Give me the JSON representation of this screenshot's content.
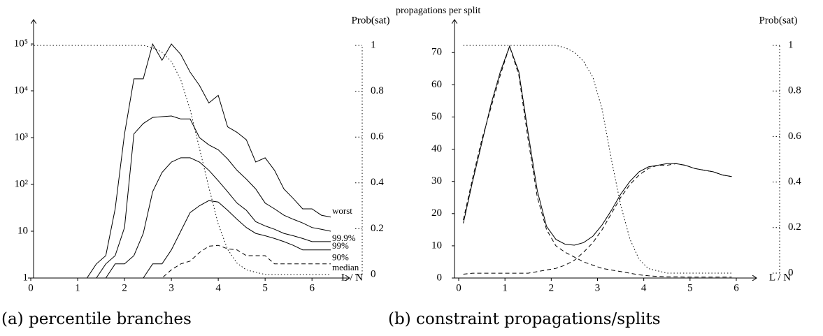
{
  "chart_data": [
    {
      "type": "line",
      "caption": "(a) percentile branches",
      "xlabel": "L / N",
      "y2label": "Prob(sat)",
      "ylog": true,
      "ylim": [
        1,
        100000
      ],
      "yticks": [
        1,
        10,
        {
          "value": 100,
          "label": "10²"
        },
        {
          "value": 1000,
          "label": "10³"
        },
        {
          "value": 10000,
          "label": "10⁴"
        },
        {
          "value": 100000,
          "label": "10⁵"
        }
      ],
      "xlim": [
        0,
        6.4
      ],
      "xticks": [
        0,
        1,
        2,
        3,
        4,
        5,
        6
      ],
      "y2lim": [
        0,
        1
      ],
      "y2ticks": [
        0,
        0.2,
        0.4,
        0.6,
        0.8,
        1
      ],
      "x": [
        0,
        0.2,
        0.4,
        0.6,
        0.8,
        1,
        1.2,
        1.4,
        1.6,
        1.8,
        2,
        2.2,
        2.4,
        2.6,
        2.8,
        3,
        3.2,
        3.4,
        3.6,
        3.8,
        4,
        4.2,
        4.4,
        4.6,
        4.8,
        5,
        5.2,
        5.4,
        5.6,
        5.8,
        6,
        6.2,
        6.4
      ],
      "series": [
        {
          "name": "worst",
          "color": "#000",
          "style": "solid",
          "values": [
            1,
            1,
            1,
            1,
            1,
            1,
            1,
            2,
            3,
            30,
            1200,
            18000,
            18000,
            100000,
            45000,
            100000,
            60000,
            25000,
            13000,
            5500,
            8000,
            1700,
            1300,
            900,
            300,
            370,
            200,
            80,
            50,
            30,
            30,
            22,
            20
          ]
        },
        {
          "name": "99.9%",
          "color": "#000",
          "style": "solid",
          "values": [
            1,
            1,
            1,
            1,
            1,
            1,
            1,
            1,
            2,
            3,
            12,
            1200,
            2000,
            2700,
            2800,
            2900,
            2500,
            2500,
            1000,
            700,
            550,
            350,
            200,
            130,
            80,
            40,
            30,
            22,
            18,
            15,
            12,
            11,
            10
          ]
        },
        {
          "name": "99%",
          "color": "#000",
          "style": "solid",
          "values": [
            1,
            1,
            1,
            1,
            1,
            1,
            1,
            1,
            1,
            2,
            2,
            3,
            9,
            70,
            180,
            300,
            370,
            370,
            300,
            200,
            120,
            70,
            40,
            28,
            16,
            13,
            11,
            9,
            8,
            7,
            6,
            6,
            6
          ]
        },
        {
          "name": "90%",
          "color": "#000",
          "style": "solid",
          "values": [
            1,
            1,
            1,
            1,
            1,
            1,
            1,
            1,
            1,
            1,
            1,
            1,
            1,
            2,
            2,
            4,
            10,
            25,
            35,
            45,
            42,
            28,
            18,
            12,
            9,
            8,
            7,
            6,
            5,
            4,
            4,
            4,
            4
          ]
        },
        {
          "name": "median",
          "color": "#000",
          "style": "dashed",
          "values": [
            1,
            1,
            1,
            1,
            1,
            1,
            1,
            1,
            1,
            1,
            1,
            1,
            1,
            1,
            1,
            1.5,
            2,
            2.3,
            3.5,
            4.8,
            5,
            4.2,
            4,
            3,
            3,
            3,
            2,
            2,
            2,
            2,
            2,
            2,
            2
          ]
        },
        {
          "color": "#000",
          "style": "dotted",
          "axis": "y2",
          "values": [
            1,
            1,
            1,
            1,
            1,
            1,
            1,
            1,
            1,
            1,
            1,
            1,
            1,
            0.99,
            0.97,
            0.93,
            0.85,
            0.72,
            0.55,
            0.38,
            0.22,
            0.11,
            0.05,
            0.02,
            0.01,
            0,
            0,
            0,
            0,
            0,
            0,
            0,
            0
          ]
        }
      ]
    },
    {
      "type": "line",
      "caption": "(b) constraint propagations/splits",
      "xlabel": "L / N",
      "ylabel": "propagations per split",
      "y2label": "Prob(sat)",
      "ylog": false,
      "ylim": [
        0,
        77
      ],
      "yticks": [
        0,
        10,
        20,
        30,
        40,
        50,
        60,
        70
      ],
      "xlim": [
        0,
        6
      ],
      "xticks": [
        0,
        1,
        2,
        3,
        4,
        5,
        6
      ],
      "y2lim": [
        0,
        1
      ],
      "y2ticks": [
        0,
        0.2,
        0.4,
        0.6,
        0.8,
        1
      ],
      "x": [
        0.1,
        0.3,
        0.5,
        0.7,
        0.9,
        1.1,
        1.3,
        1.5,
        1.7,
        1.9,
        2.1,
        2.3,
        2.5,
        2.7,
        2.9,
        3.1,
        3.3,
        3.5,
        3.7,
        3.9,
        4.1,
        4.3,
        4.5,
        4.7,
        4.9,
        5.1,
        5.3,
        5.5,
        5.7,
        5.9
      ],
      "series": [
        {
          "color": "#000",
          "style": "solid",
          "values": [
            17,
            30,
            42,
            54,
            64,
            72,
            64,
            45,
            27,
            16,
            12,
            10.5,
            10.2,
            11,
            13,
            16.5,
            21,
            26,
            30,
            33,
            34.5,
            35,
            35.5,
            35.5,
            35,
            34,
            33.5,
            33,
            32,
            31.5
          ]
        },
        {
          "color": "#000",
          "style": "dashed",
          "values": [
            18,
            31,
            43,
            53,
            63,
            72,
            63,
            43,
            25,
            15,
            10,
            8,
            6.5,
            5,
            4,
            3,
            2.5,
            2,
            1.5,
            1,
            0.7,
            0.5,
            0.4,
            0.4,
            0.3,
            0.3,
            0.3,
            0.3,
            0.3,
            0.3
          ]
        },
        {
          "color": "#000",
          "style": "dashed",
          "values": [
            1.2,
            1.5,
            1.5,
            1.5,
            1.5,
            1.5,
            1.5,
            1.5,
            2,
            2.5,
            3,
            4,
            5.5,
            8,
            11,
            15,
            20,
            25,
            29,
            32,
            34,
            35,
            35,
            35.5,
            35,
            34,
            33.5,
            33,
            32,
            31.5
          ]
        },
        {
          "color": "#000",
          "style": "dotted",
          "axis": "y2",
          "values": [
            1,
            1,
            1,
            1,
            1,
            1,
            1,
            1,
            1,
            1,
            1,
            0.99,
            0.97,
            0.93,
            0.86,
            0.72,
            0.5,
            0.3,
            0.15,
            0.06,
            0.02,
            0.01,
            0,
            0,
            0,
            0,
            0,
            0,
            0,
            0
          ]
        }
      ]
    }
  ]
}
